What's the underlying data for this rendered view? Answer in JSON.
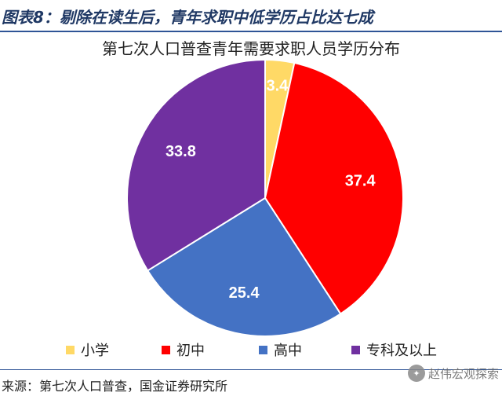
{
  "header": {
    "figure_title": "图表8：剔除在读生后，青年求职中低学历占比达七成"
  },
  "chart_data": {
    "type": "pie",
    "title": "第七次人口普查青年需要求职人员学历分布",
    "slices": [
      {
        "label": "小学",
        "value": 3.4,
        "color": "#ffd966"
      },
      {
        "label": "初中",
        "value": 37.4,
        "color": "#ff0000"
      },
      {
        "label": "高中",
        "value": 25.4,
        "color": "#4472c4"
      },
      {
        "label": "专科及以上",
        "value": 33.8,
        "color": "#7030a0"
      }
    ],
    "legend_position": "bottom"
  },
  "footer": {
    "source": "来源：第七次人口普查，国金证券研究所",
    "watermark": "赵伟宏观探索"
  }
}
